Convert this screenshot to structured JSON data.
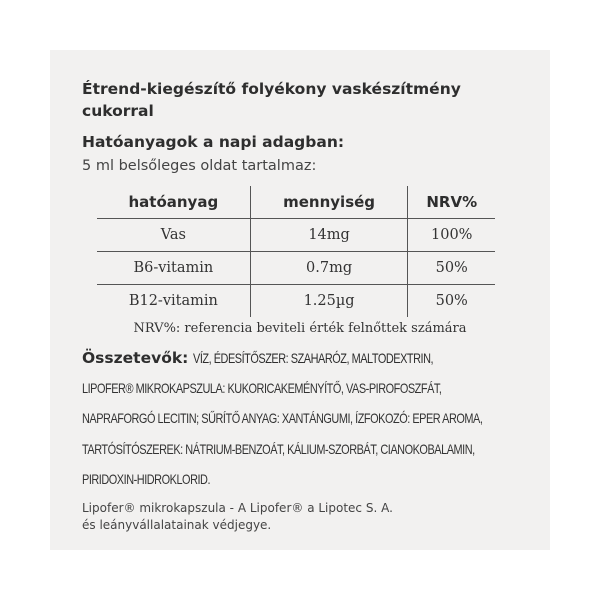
{
  "title": [
    "Étrend-kiegészítő folyékony vaskészítmény",
    "cukorral"
  ],
  "subtitle": "Hatóanyagok a napi adagban:",
  "intro": "5 ml belsőleges oldat tartalmaz:",
  "table": {
    "headers": [
      "hatóanyag",
      "mennyiség",
      "NRV%"
    ],
    "rows": [
      [
        "Vas",
        "14mg",
        "100%"
      ],
      [
        "B6-vitamin",
        "0.7mg",
        "50%"
      ],
      [
        "B12-vitamin",
        "1.25µg",
        "50%"
      ]
    ]
  },
  "nrv_note": "NRV%: referencia beviteli érték felnőttek számára",
  "ingredients": {
    "label": "Összetevők:",
    "lines": [
      "VÍZ, ÉDESÍTŐSZER: SZAHARÓZ, MALTODEXTRIN,",
      "LIPOFER® MIKROKAPSZULA:  KUKORICAKEMÉNYÍTŐ, VAS-PIROFOSZFÁT,",
      "NAPRAFORGÓ LECITIN; SŰRÍTŐ ANYAG: XANTÁNGUMI, ÍZFOKOZÓ: EPER AROMA,",
      "TARTÓSÍTÓSZEREK: NÁTRIUM-BENZOÁT, KÁLIUM-SZORBÁT, CIANOKOBALAMIN,",
      "PIRIDOXIN-HIDROKLORID."
    ]
  },
  "footnote": [
    "Lipofer® mikrokapszula - A Lipofer® a Lipotec S. A.",
    "és leányvállalatainak védjegye."
  ]
}
